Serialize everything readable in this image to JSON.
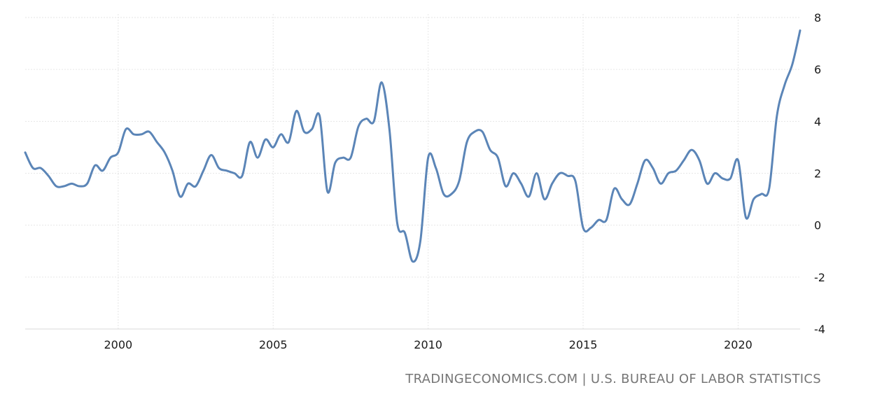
{
  "source": "TRADINGECONOMICS.COM | U.S. BUREAU OF LABOR STATISTICS",
  "colors": {
    "line": "#5b85b7",
    "grid": "#e6e6e6",
    "axis": "#d8d8d8"
  },
  "chart_data": {
    "type": "line",
    "title": "",
    "xlabel": "",
    "ylabel": "",
    "xlim": [
      "1997-01",
      "2022-01"
    ],
    "ylim": [
      -4,
      8
    ],
    "x_ticks": [
      "2000",
      "2005",
      "2010",
      "2015",
      "2020"
    ],
    "y_ticks": [
      "8",
      "6",
      "4",
      "2",
      "0",
      "-2",
      "-4"
    ],
    "grid": true,
    "legend": "none",
    "series": [
      {
        "x": [
          "1997-01",
          "1997-04",
          "1997-07",
          "1997-10",
          "1998-01",
          "1998-04",
          "1998-07",
          "1998-10",
          "1999-01",
          "1999-04",
          "1999-07",
          "1999-10",
          "2000-01",
          "2000-04",
          "2000-07",
          "2000-10",
          "2001-01",
          "2001-04",
          "2001-07",
          "2001-10",
          "2002-01",
          "2002-04",
          "2002-07",
          "2002-10",
          "2003-01",
          "2003-04",
          "2003-07",
          "2003-10",
          "2004-01",
          "2004-04",
          "2004-07",
          "2004-10",
          "2005-01",
          "2005-04",
          "2005-07",
          "2005-10",
          "2006-01",
          "2006-04",
          "2006-07",
          "2006-10",
          "2007-01",
          "2007-04",
          "2007-07",
          "2007-10",
          "2008-01",
          "2008-04",
          "2008-07",
          "2008-10",
          "2009-01",
          "2009-04",
          "2009-07",
          "2009-10",
          "2010-01",
          "2010-04",
          "2010-07",
          "2010-10",
          "2011-01",
          "2011-04",
          "2011-07",
          "2011-10",
          "2012-01",
          "2012-04",
          "2012-07",
          "2012-10",
          "2013-01",
          "2013-04",
          "2013-07",
          "2013-10",
          "2014-01",
          "2014-04",
          "2014-07",
          "2014-10",
          "2015-01",
          "2015-04",
          "2015-07",
          "2015-10",
          "2016-01",
          "2016-04",
          "2016-07",
          "2016-10",
          "2017-01",
          "2017-04",
          "2017-07",
          "2017-10",
          "2018-01",
          "2018-04",
          "2018-07",
          "2018-10",
          "2019-01",
          "2019-04",
          "2019-07",
          "2019-10",
          "2020-01",
          "2020-04",
          "2020-07",
          "2020-10",
          "2021-01",
          "2021-04",
          "2021-07",
          "2021-10",
          "2022-01"
        ],
        "values": [
          2.8,
          2.2,
          2.2,
          1.9,
          1.5,
          1.5,
          1.6,
          1.5,
          1.6,
          2.3,
          2.1,
          2.6,
          2.8,
          3.7,
          3.5,
          3.5,
          3.6,
          3.2,
          2.8,
          2.1,
          1.1,
          1.6,
          1.5,
          2.1,
          2.7,
          2.2,
          2.1,
          2.0,
          1.9,
          3.2,
          2.6,
          3.3,
          3.0,
          3.5,
          3.2,
          4.4,
          3.6,
          3.7,
          4.2,
          1.3,
          2.4,
          2.6,
          2.6,
          3.8,
          4.1,
          4.0,
          5.5,
          3.7,
          0.1,
          -0.3,
          -1.4,
          -0.6,
          2.6,
          2.2,
          1.2,
          1.2,
          1.7,
          3.2,
          3.6,
          3.6,
          2.9,
          2.6,
          1.5,
          2.0,
          1.6,
          1.1,
          2.0,
          1.0,
          1.6,
          2.0,
          1.9,
          1.7,
          -0.1,
          -0.1,
          0.2,
          0.2,
          1.4,
          1.0,
          0.8,
          1.6,
          2.5,
          2.2,
          1.6,
          2.0,
          2.1,
          2.5,
          2.9,
          2.5,
          1.6,
          2.0,
          1.8,
          1.8,
          2.5,
          0.3,
          1.0,
          1.2,
          1.4,
          4.2,
          5.4,
          6.2,
          7.5
        ]
      }
    ]
  }
}
